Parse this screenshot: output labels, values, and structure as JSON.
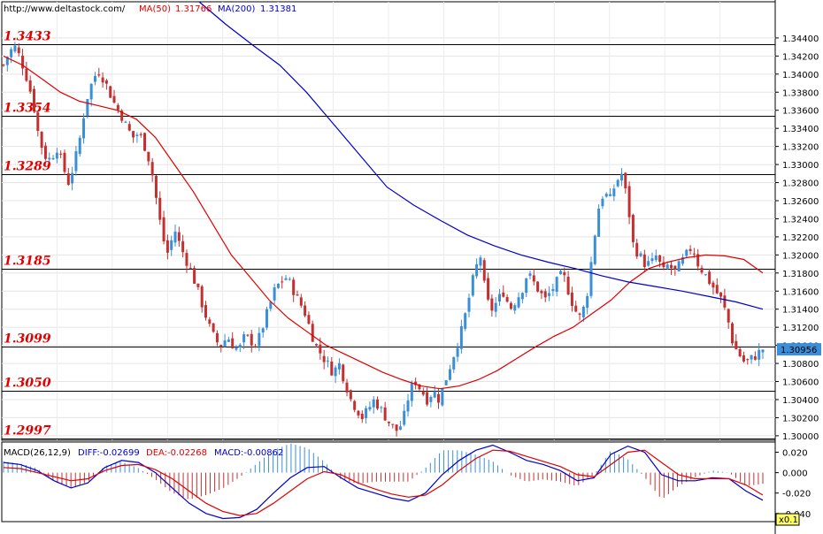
{
  "chart_data": [
    {
      "type": "candlestick",
      "source_label": "http://www.deltastock.com/",
      "ma_labels": [
        {
          "name": "MA(50)",
          "value": "1.31766",
          "color": "#e00000"
        },
        {
          "name": "MA(200)",
          "value": "1.31381",
          "color": "#0000cc"
        }
      ],
      "ylim": [
        1.2995,
        1.348
      ],
      "y_ticks": [
        "1.34400",
        "1.34200",
        "1.34000",
        "1.33800",
        "1.33600",
        "1.33400",
        "1.33200",
        "1.33000",
        "1.32800",
        "1.32600",
        "1.32400",
        "1.32200",
        "1.32000",
        "1.31800",
        "1.31600",
        "1.31400",
        "1.31200",
        "1.31000",
        "1.30800",
        "1.30600",
        "1.30400",
        "1.30200",
        "1.30000"
      ],
      "levels": [
        {
          "label": "1.3433",
          "value": 1.3433
        },
        {
          "label": "1.3354",
          "value": 1.3354
        },
        {
          "label": "1.3289",
          "value": 1.3289
        },
        {
          "label": "1.3185",
          "value": 1.3185
        },
        {
          "label": "1.3099",
          "value": 1.3099
        },
        {
          "label": "1.3050",
          "value": 1.305
        },
        {
          "label": "1.2997",
          "value": 1.2997
        }
      ],
      "last_price": "1.30956",
      "last_price_value": 1.30956,
      "price_path": [
        1.341,
        1.3425,
        1.343,
        1.3415,
        1.3395,
        1.337,
        1.333,
        1.331,
        1.3305,
        1.332,
        1.33,
        1.328,
        1.33,
        1.333,
        1.337,
        1.339,
        1.3405,
        1.3395,
        1.338,
        1.3365,
        1.3355,
        1.334,
        1.333,
        1.3335,
        1.332,
        1.33,
        1.326,
        1.322,
        1.32,
        1.323,
        1.321,
        1.3195,
        1.318,
        1.316,
        1.314,
        1.312,
        1.3105,
        1.31,
        1.311,
        1.31,
        1.3095,
        1.311,
        1.3105,
        1.31,
        1.312,
        1.314,
        1.316,
        1.317,
        1.3175,
        1.3165,
        1.315,
        1.314,
        1.312,
        1.31,
        1.309,
        1.308,
        1.307,
        1.308,
        1.306,
        1.304,
        1.303,
        1.302,
        1.303,
        1.304,
        1.303,
        1.302,
        1.301,
        1.3005,
        1.302,
        1.305,
        1.306,
        1.305,
        1.304,
        1.305,
        1.304,
        1.306,
        1.308,
        1.31,
        1.312,
        1.315,
        1.318,
        1.32,
        1.315,
        1.314,
        1.315,
        1.316,
        1.314,
        1.315,
        1.316,
        1.318,
        1.317,
        1.316,
        1.315,
        1.316,
        1.317,
        1.318,
        1.316,
        1.314,
        1.313,
        1.315,
        1.32,
        1.325,
        1.327,
        1.326,
        1.328,
        1.329,
        1.326,
        1.321,
        1.32,
        1.319,
        1.319,
        1.32,
        1.318,
        1.319,
        1.318,
        1.319,
        1.32,
        1.321,
        1.319,
        1.318,
        1.317,
        1.316,
        1.315,
        1.313,
        1.31,
        1.309,
        1.308,
        1.3085,
        1.309,
        1.3096
      ],
      "ma50_path": [
        1.342,
        1.341,
        1.3395,
        1.338,
        1.337,
        1.3365,
        1.336,
        1.335,
        1.333,
        1.33,
        1.327,
        1.3235,
        1.32,
        1.3175,
        1.315,
        1.313,
        1.3115,
        1.31,
        1.309,
        1.308,
        1.307,
        1.3062,
        1.3055,
        1.3052,
        1.3055,
        1.3062,
        1.3072,
        1.3085,
        1.3098,
        1.311,
        1.312,
        1.3135,
        1.315,
        1.317,
        1.3185,
        1.3192,
        1.3197,
        1.32,
        1.3199,
        1.3195,
        1.318
      ],
      "ma200_path": [
        1.348,
        1.3455,
        1.3432,
        1.341,
        1.338,
        1.3345,
        1.331,
        1.3275,
        1.3255,
        1.3238,
        1.3222,
        1.321,
        1.32,
        1.3192,
        1.3185,
        1.3177,
        1.317,
        1.3165,
        1.316,
        1.3154,
        1.3148,
        1.314
      ],
      "macd": {
        "label": "MACD(26,12,9)",
        "diff_label": "DIFF:-0.02699",
        "dea_label": "DEA:-0.02268",
        "macd_label": "MACD:-0.00862",
        "ylim": [
          -0.048,
          0.03
        ],
        "y_ticks": [
          "0.020",
          "0.000",
          "-0.020",
          "-0.040"
        ],
        "scale_badge": "x0.1",
        "diff_path": [
          0.01,
          0.008,
          0.002,
          -0.008,
          -0.015,
          -0.01,
          0.005,
          0.012,
          0.01,
          0.0,
          -0.015,
          -0.03,
          -0.04,
          -0.045,
          -0.044,
          -0.036,
          -0.02,
          -0.005,
          0.005,
          0.006,
          -0.005,
          -0.015,
          -0.02,
          -0.025,
          -0.028,
          -0.02,
          -0.002,
          0.012,
          0.022,
          0.027,
          0.02,
          0.012,
          0.008,
          0.002,
          -0.008,
          -0.005,
          0.018,
          0.026,
          0.02,
          -0.002,
          -0.008,
          -0.008,
          -0.005,
          -0.006,
          -0.018,
          -0.027
        ],
        "dea_path": [
          0.005,
          0.004,
          0.0,
          -0.004,
          -0.008,
          -0.006,
          0.002,
          0.007,
          0.008,
          0.003,
          -0.006,
          -0.018,
          -0.03,
          -0.038,
          -0.042,
          -0.04,
          -0.03,
          -0.018,
          -0.006,
          0.001,
          -0.002,
          -0.01,
          -0.016,
          -0.021,
          -0.024,
          -0.022,
          -0.012,
          0.002,
          0.014,
          0.022,
          0.021,
          0.016,
          0.011,
          0.006,
          -0.002,
          -0.004,
          0.008,
          0.02,
          0.022,
          0.01,
          -0.002,
          -0.006,
          -0.006,
          -0.006,
          -0.012,
          -0.022
        ]
      }
    }
  ]
}
